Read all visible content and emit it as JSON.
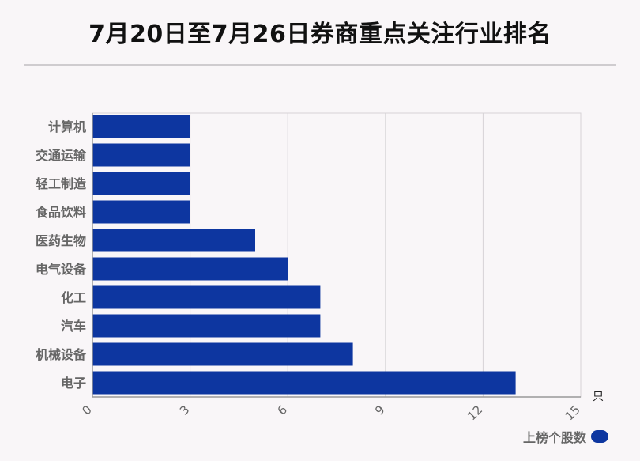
{
  "title": "7月20日至7月26日券商重点关注行业排名",
  "chart_data": {
    "type": "bar",
    "orientation": "horizontal",
    "categories": [
      "计算机",
      "交通运输",
      "轻工制造",
      "食品饮料",
      "医药生物",
      "电气设备",
      "化工",
      "汽车",
      "机械设备",
      "电子"
    ],
    "series": [
      {
        "name": "上榜个股数",
        "values": [
          3,
          3,
          3,
          3,
          5,
          6,
          7,
          7,
          8,
          13
        ]
      }
    ],
    "xlim": [
      0,
      15
    ],
    "xticks": [
      0,
      3,
      6,
      9,
      12,
      15
    ],
    "xunit": "只",
    "grid": true,
    "legend_position": "bottom-right",
    "colors": {
      "bar": "#0d36a0",
      "grid": "#d6d3d6",
      "axis": "#999999",
      "label": "#666666"
    }
  }
}
